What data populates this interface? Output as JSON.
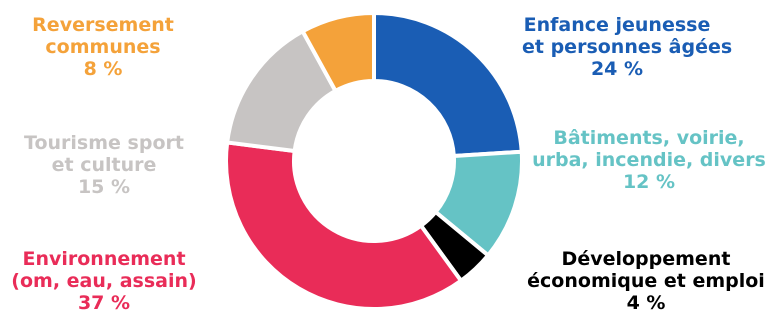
{
  "chart_data": {
    "type": "pie",
    "donut": true,
    "title": "",
    "slices": [
      {
        "name_lines": [
          "Enfance jeunesse",
          "et personnes âgées"
        ],
        "value": 24,
        "value_label": "24 %",
        "color": "#1a5db4"
      },
      {
        "name_lines": [
          "Bâtiments, voirie,",
          "urba, incendie, divers"
        ],
        "value": 12,
        "value_label": "12 %",
        "color": "#65c3c5"
      },
      {
        "name_lines": [
          "Développement",
          "économique et emploi"
        ],
        "value": 4,
        "value_label": "4 %",
        "color": "#000000"
      },
      {
        "name_lines": [
          "Environnement",
          "(om, eau, assain)"
        ],
        "value": 37,
        "value_label": "37 %",
        "color": "#e92c58"
      },
      {
        "name_lines": [
          "Tourisme sport",
          "et culture"
        ],
        "value": 15,
        "value_label": "15 %",
        "color": "#c7c4c3"
      },
      {
        "name_lines": [
          "Reversement",
          "communes"
        ],
        "value": 8,
        "value_label": "8 %",
        "color": "#f4a23a"
      }
    ]
  }
}
